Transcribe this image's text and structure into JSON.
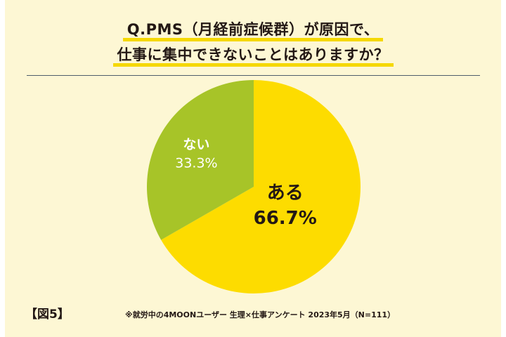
{
  "header": {
    "title_line1": "Q.PMS（月経前症候群）が原因で、",
    "title_line2": "仕事に集中できないことはありますか？"
  },
  "footer": {
    "figure_label": "【図5】",
    "source": "※就労中の4MOONユーザー 生理×仕事アンケート 2023年5月（N=111）"
  },
  "colors": {
    "background": "#fdf7d4",
    "accent": "#f5d800"
  },
  "chart_data": {
    "type": "pie",
    "title": "",
    "slices": [
      {
        "label": "ある",
        "value": 66.7,
        "display": "66.7%",
        "color": "#fddc00",
        "text_color": "#231815"
      },
      {
        "label": "ない",
        "value": 33.3,
        "display": "33.3%",
        "color": "#a7c428",
        "text_color": "#ffffff"
      }
    ]
  }
}
